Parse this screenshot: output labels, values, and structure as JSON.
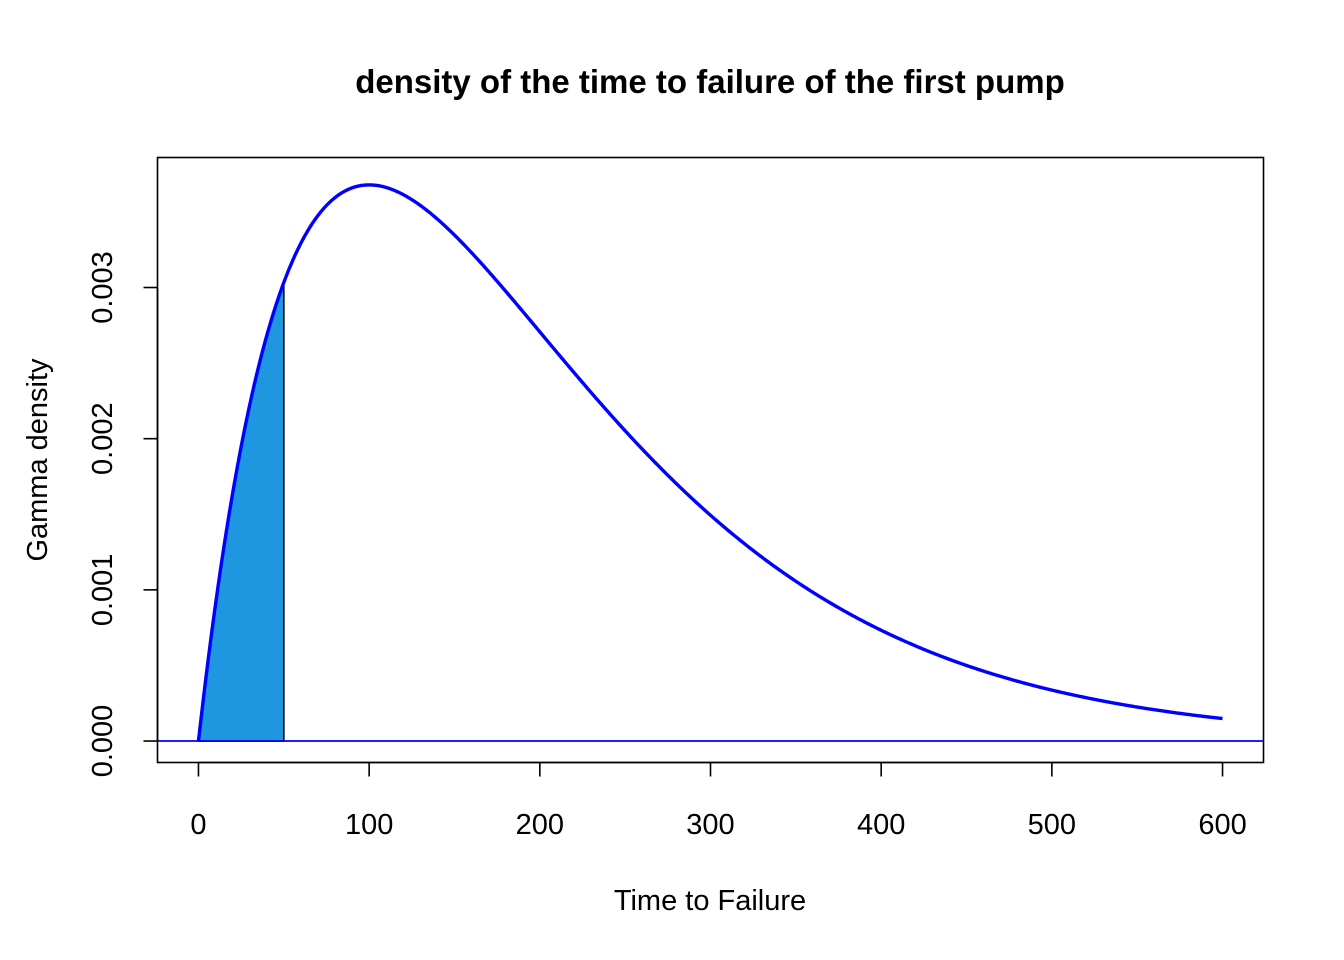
{
  "chart_data": {
    "type": "area",
    "title": "density of the time to failure of the first pump",
    "xlabel": "Time to Failure",
    "ylabel": "Gamma density",
    "xlim": [
      -24,
      624
    ],
    "ylim": [
      -0.000142,
      0.00386
    ],
    "x_ticks": [
      0,
      100,
      200,
      300,
      400,
      500,
      600
    ],
    "x_tick_labels": [
      "0",
      "100",
      "200",
      "300",
      "400",
      "500",
      "600"
    ],
    "y_ticks": [
      0,
      0.001,
      0.002,
      0.003
    ],
    "y_tick_labels": [
      "0.000",
      "0.001",
      "0.002",
      "0.003"
    ],
    "grid": false,
    "legend": "none",
    "series": [
      {
        "distribution": "gamma",
        "shape": 2,
        "rate": 0.01,
        "x_range": [
          0,
          600
        ],
        "color": "#0000ff"
      }
    ],
    "shaded_region": {
      "x_from": 0,
      "x_to": 50,
      "fill": "#1e96e0",
      "edge": "#000000"
    },
    "hline": {
      "y": 0,
      "color": "#0000ff"
    }
  }
}
